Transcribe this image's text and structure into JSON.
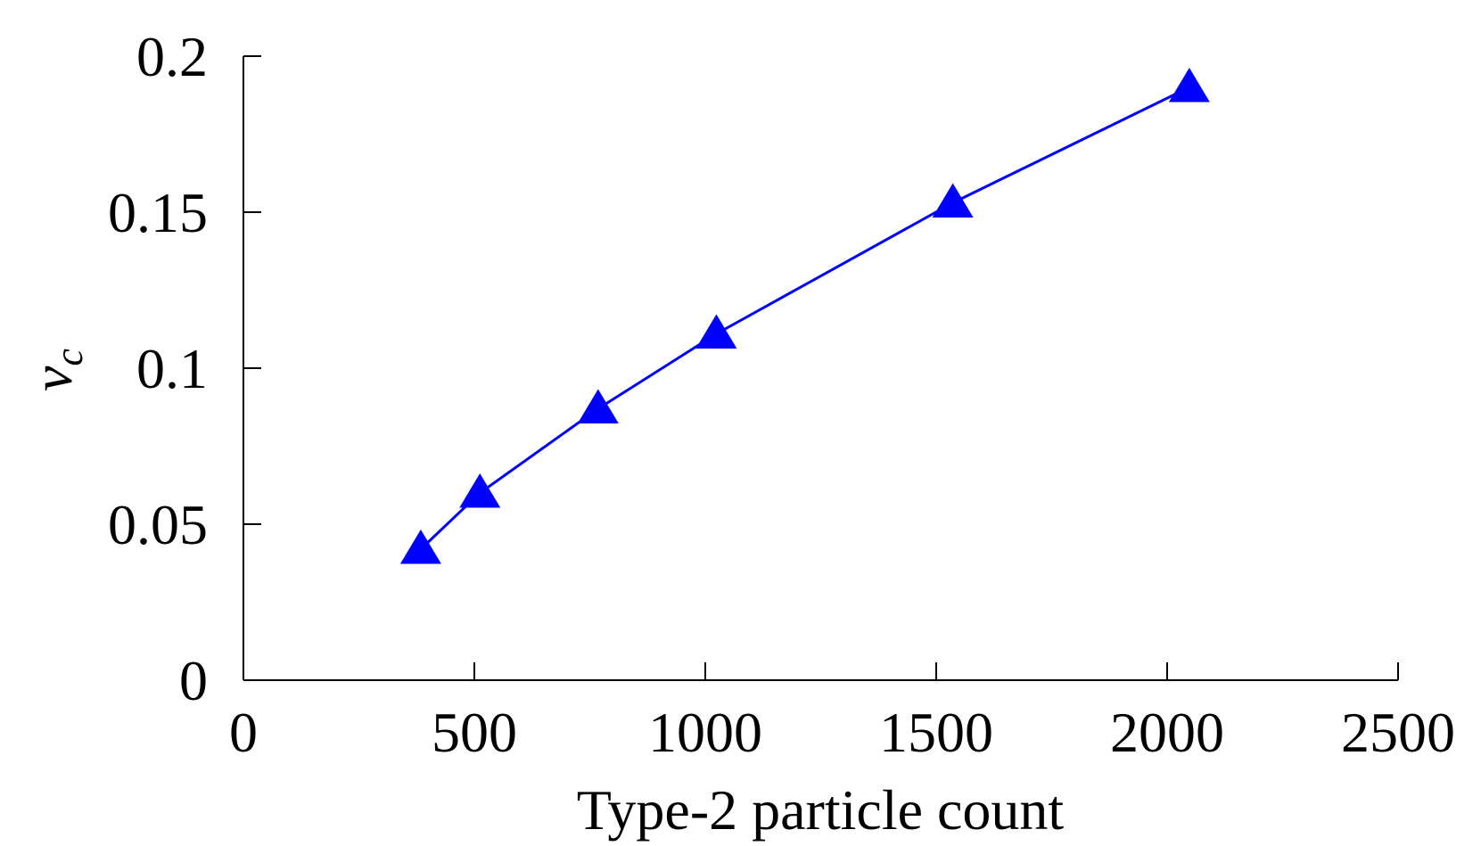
{
  "chart_data": {
    "type": "line",
    "xlabel": "Type-2 particle count",
    "ylabel": "v",
    "ylabel_subscript": "c",
    "x": [
      384,
      512,
      768,
      1024,
      1536,
      2048
    ],
    "series": [
      {
        "name": null,
        "color": "#0000ff",
        "marker": "triangle",
        "values": [
          0.042,
          0.06,
          0.087,
          0.111,
          0.153,
          0.19
        ]
      }
    ],
    "xlim": [
      0,
      2500
    ],
    "xticks": [
      0,
      500,
      1000,
      1500,
      2000,
      2500
    ],
    "ylim": [
      0,
      0.2
    ],
    "yticks": [
      0,
      0.05,
      0.1,
      0.15,
      0.2
    ]
  }
}
